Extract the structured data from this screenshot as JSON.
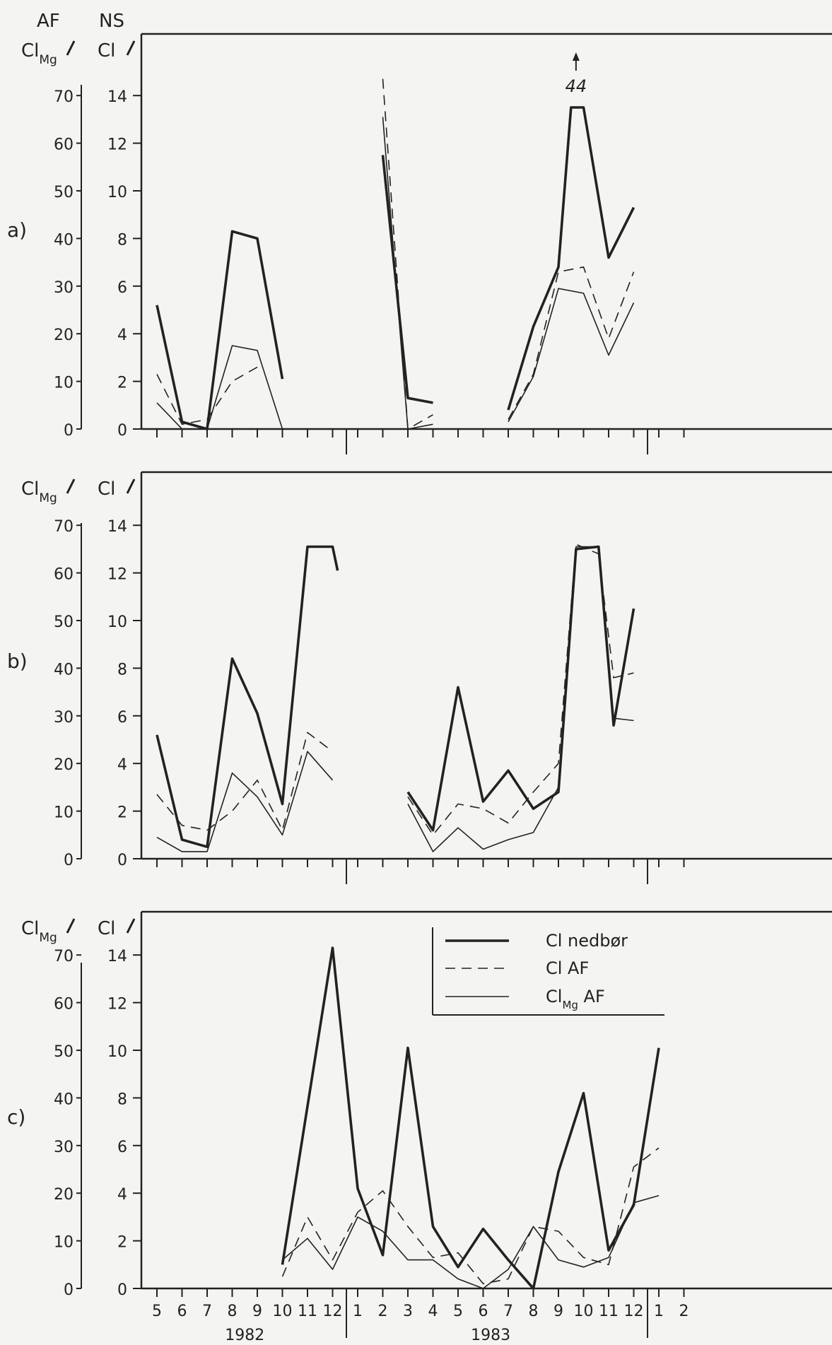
{
  "header": {
    "af": "AF",
    "ns": "NS"
  },
  "axis_titles": {
    "left_main": "Cl",
    "left_sub": "Mg",
    "right": "Cl"
  },
  "months_label": [
    "5",
    "6",
    "7",
    "8",
    "9",
    "10",
    "11",
    "12",
    "1",
    "2",
    "3",
    "4",
    "5",
    "6",
    "7",
    "8",
    "9",
    "10",
    "11",
    "12",
    "1",
    "2"
  ],
  "years": [
    "1982",
    "1983"
  ],
  "legend": {
    "items": [
      {
        "label": "Cl nedbør",
        "style": "thick"
      },
      {
        "label": "Cl AF",
        "style": "dashed"
      },
      {
        "label_main": "Cl",
        "label_sub": "Mg",
        "label_tail": " AF",
        "style": "thin"
      }
    ]
  },
  "annotation_a": {
    "text": "44"
  },
  "colors": {
    "ink": "#222222",
    "paper": "#f4f4f2"
  },
  "chart_data": [
    {
      "type": "line",
      "panel_label": "a)",
      "x": [
        "5",
        "6",
        "7",
        "8",
        "9",
        "10",
        "11",
        "12",
        "1",
        "2",
        "3",
        "4",
        "5",
        "6",
        "7",
        "8",
        "9",
        "10",
        "11",
        "12",
        "1",
        "2"
      ],
      "y_left_ticks": [
        0,
        10,
        20,
        30,
        40,
        50,
        60,
        70
      ],
      "y_right_ticks": [
        0,
        2,
        4,
        6,
        8,
        10,
        12,
        14
      ],
      "ylim_right": [
        0,
        14
      ],
      "series": [
        {
          "name": "Cl nedbør",
          "style": "thick",
          "segments": [
            [
              [
                0,
                5.2
              ],
              [
                1,
                0.3
              ],
              [
                2,
                0
              ],
              [
                3,
                8.3
              ],
              [
                4,
                8.0
              ],
              [
                5,
                2.1
              ]
            ],
            [
              [
                9,
                11.5
              ],
              [
                10,
                1.3
              ],
              [
                11,
                1.1
              ]
            ],
            [
              [
                14,
                0.8
              ],
              [
                15,
                4.3
              ],
              [
                16,
                6.8
              ],
              [
                16.5,
                13.5
              ],
              [
                17,
                13.5
              ],
              [
                18,
                7.2
              ],
              [
                19,
                9.3
              ]
            ]
          ]
        },
        {
          "name": "Cl AF",
          "style": "dashed",
          "segments": [
            [
              [
                0,
                2.3
              ],
              [
                1,
                0.2
              ],
              [
                2,
                0.4
              ],
              [
                3,
                2.0
              ],
              [
                4,
                2.6
              ]
            ],
            [
              [
                9,
                14.7
              ],
              [
                10,
                0
              ],
              [
                11,
                0.6
              ]
            ],
            [
              [
                14,
                0.4
              ],
              [
                15,
                2.3
              ],
              [
                16,
                6.6
              ],
              [
                17,
                6.8
              ],
              [
                18,
                3.8
              ],
              [
                19,
                6.6
              ]
            ]
          ]
        },
        {
          "name": "Cl AF (Mg)",
          "style": "thin",
          "segments": [
            [
              [
                0,
                1.1
              ],
              [
                1,
                0
              ],
              [
                2,
                0
              ],
              [
                3,
                3.5
              ],
              [
                4,
                3.3
              ],
              [
                5,
                0
              ]
            ],
            [
              [
                9,
                13.1
              ],
              [
                10,
                0
              ],
              [
                11,
                0.2
              ]
            ],
            [
              [
                14,
                0.3
              ],
              [
                15,
                2.2
              ],
              [
                16,
                5.9
              ],
              [
                17,
                5.7
              ],
              [
                18,
                3.1
              ],
              [
                19,
                5.3
              ]
            ]
          ]
        }
      ]
    },
    {
      "type": "line",
      "panel_label": "b)",
      "x": [
        "5",
        "6",
        "7",
        "8",
        "9",
        "10",
        "11",
        "12",
        "1",
        "2",
        "3",
        "4",
        "5",
        "6",
        "7",
        "8",
        "9",
        "10",
        "11",
        "12",
        "1",
        "2"
      ],
      "y_left_ticks": [
        0,
        10,
        20,
        30,
        40,
        50,
        60,
        70
      ],
      "y_right_ticks": [
        0,
        2,
        4,
        6,
        8,
        10,
        12,
        14
      ],
      "ylim_right": [
        0,
        14
      ],
      "series": [
        {
          "name": "Cl nedbør",
          "style": "thick",
          "segments": [
            [
              [
                0,
                5.2
              ],
              [
                1,
                0.8
              ],
              [
                2,
                0.5
              ],
              [
                3,
                8.4
              ],
              [
                4,
                6.1
              ],
              [
                5,
                2.3
              ],
              [
                6,
                13.1
              ],
              [
                7,
                13.1
              ],
              [
                7.2,
                12.1
              ]
            ],
            [
              [
                10,
                2.8
              ],
              [
                11,
                1.2
              ],
              [
                12,
                7.2
              ],
              [
                13,
                2.4
              ],
              [
                14,
                3.7
              ],
              [
                15,
                2.1
              ],
              [
                16,
                2.8
              ],
              [
                16.7,
                13.0
              ],
              [
                17.6,
                13.1
              ],
              [
                18.2,
                5.6
              ],
              [
                19,
                10.5
              ]
            ]
          ]
        },
        {
          "name": "Cl AF",
          "style": "dashed",
          "segments": [
            [
              [
                0,
                2.7
              ],
              [
                1,
                1.4
              ],
              [
                2,
                1.2
              ],
              [
                3,
                2.0
              ],
              [
                4,
                3.3
              ],
              [
                5,
                1.2
              ],
              [
                6,
                5.3
              ],
              [
                7,
                4.5
              ]
            ],
            [
              [
                10,
                2.6
              ],
              [
                11,
                1.0
              ],
              [
                12,
                2.3
              ],
              [
                13,
                2.1
              ],
              [
                14,
                1.5
              ],
              [
                15,
                2.8
              ],
              [
                16,
                4.0
              ],
              [
                16.7,
                13.2
              ],
              [
                17.6,
                12.8
              ],
              [
                18.2,
                7.6
              ],
              [
                19,
                7.8
              ]
            ]
          ]
        },
        {
          "name": "Cl AF (Mg)",
          "style": "thin",
          "segments": [
            [
              [
                0,
                0.9
              ],
              [
                1,
                0.3
              ],
              [
                2,
                0.3
              ],
              [
                3,
                3.6
              ],
              [
                4,
                2.6
              ],
              [
                5,
                1.0
              ],
              [
                6,
                4.5
              ],
              [
                7,
                3.3
              ]
            ],
            [
              [
                10,
                2.3
              ],
              [
                11,
                0.3
              ],
              [
                12,
                1.3
              ],
              [
                13,
                0.4
              ],
              [
                14,
                0.8
              ],
              [
                15,
                1.1
              ],
              [
                16,
                3.0
              ],
              [
                16.7,
                13.1
              ],
              [
                17.6,
                13.1
              ],
              [
                18.2,
                5.9
              ],
              [
                19,
                5.8
              ]
            ]
          ]
        }
      ]
    },
    {
      "type": "line",
      "panel_label": "c)",
      "x": [
        "5",
        "6",
        "7",
        "8",
        "9",
        "10",
        "11",
        "12",
        "1",
        "2",
        "3",
        "4",
        "5",
        "6",
        "7",
        "8",
        "9",
        "10",
        "11",
        "12",
        "1",
        "2"
      ],
      "y_left_ticks": [
        0,
        10,
        20,
        30,
        40,
        50,
        60,
        70
      ],
      "y_right_ticks": [
        0,
        2,
        4,
        6,
        8,
        10,
        12,
        14
      ],
      "ylim_right": [
        0,
        14
      ],
      "series": [
        {
          "name": "Cl nedbør",
          "style": "thick",
          "segments": [
            [
              [
                5,
                1.0
              ],
              [
                7,
                14.3
              ],
              [
                8,
                4.2
              ],
              [
                9,
                1.4
              ],
              [
                10,
                10.1
              ],
              [
                11,
                2.6
              ],
              [
                12,
                0.9
              ],
              [
                13,
                2.5
              ],
              [
                14,
                1.2
              ],
              [
                15,
                0
              ],
              [
                16,
                4.9
              ],
              [
                17,
                8.2
              ],
              [
                18,
                1.6
              ],
              [
                19,
                3.5
              ],
              [
                20,
                10.1
              ]
            ]
          ]
        },
        {
          "name": "Cl AF",
          "style": "dashed",
          "segments": [
            [
              [
                5,
                0.5
              ],
              [
                6,
                3.0
              ],
              [
                7,
                1.2
              ],
              [
                8,
                3.2
              ],
              [
                9,
                4.1
              ],
              [
                10,
                2.6
              ],
              [
                11,
                1.3
              ],
              [
                12,
                1.5
              ],
              [
                13,
                0.2
              ],
              [
                14,
                0.4
              ],
              [
                15,
                2.6
              ],
              [
                16,
                2.4
              ],
              [
                17,
                1.3
              ],
              [
                18,
                1.0
              ],
              [
                19,
                5.1
              ],
              [
                20,
                5.9
              ]
            ]
          ]
        },
        {
          "name": "Cl AF (Mg)",
          "style": "thin",
          "segments": [
            [
              [
                5,
                1.2
              ],
              [
                6,
                2.1
              ],
              [
                7,
                0.8
              ],
              [
                8,
                3.0
              ],
              [
                9,
                2.4
              ],
              [
                10,
                1.2
              ],
              [
                11,
                1.2
              ],
              [
                12,
                0.4
              ],
              [
                13,
                0
              ],
              [
                14,
                0.8
              ],
              [
                15,
                2.6
              ],
              [
                16,
                1.2
              ],
              [
                17,
                0.9
              ],
              [
                18,
                1.3
              ],
              [
                19,
                3.6
              ],
              [
                20,
                3.9
              ]
            ]
          ]
        }
      ]
    }
  ]
}
